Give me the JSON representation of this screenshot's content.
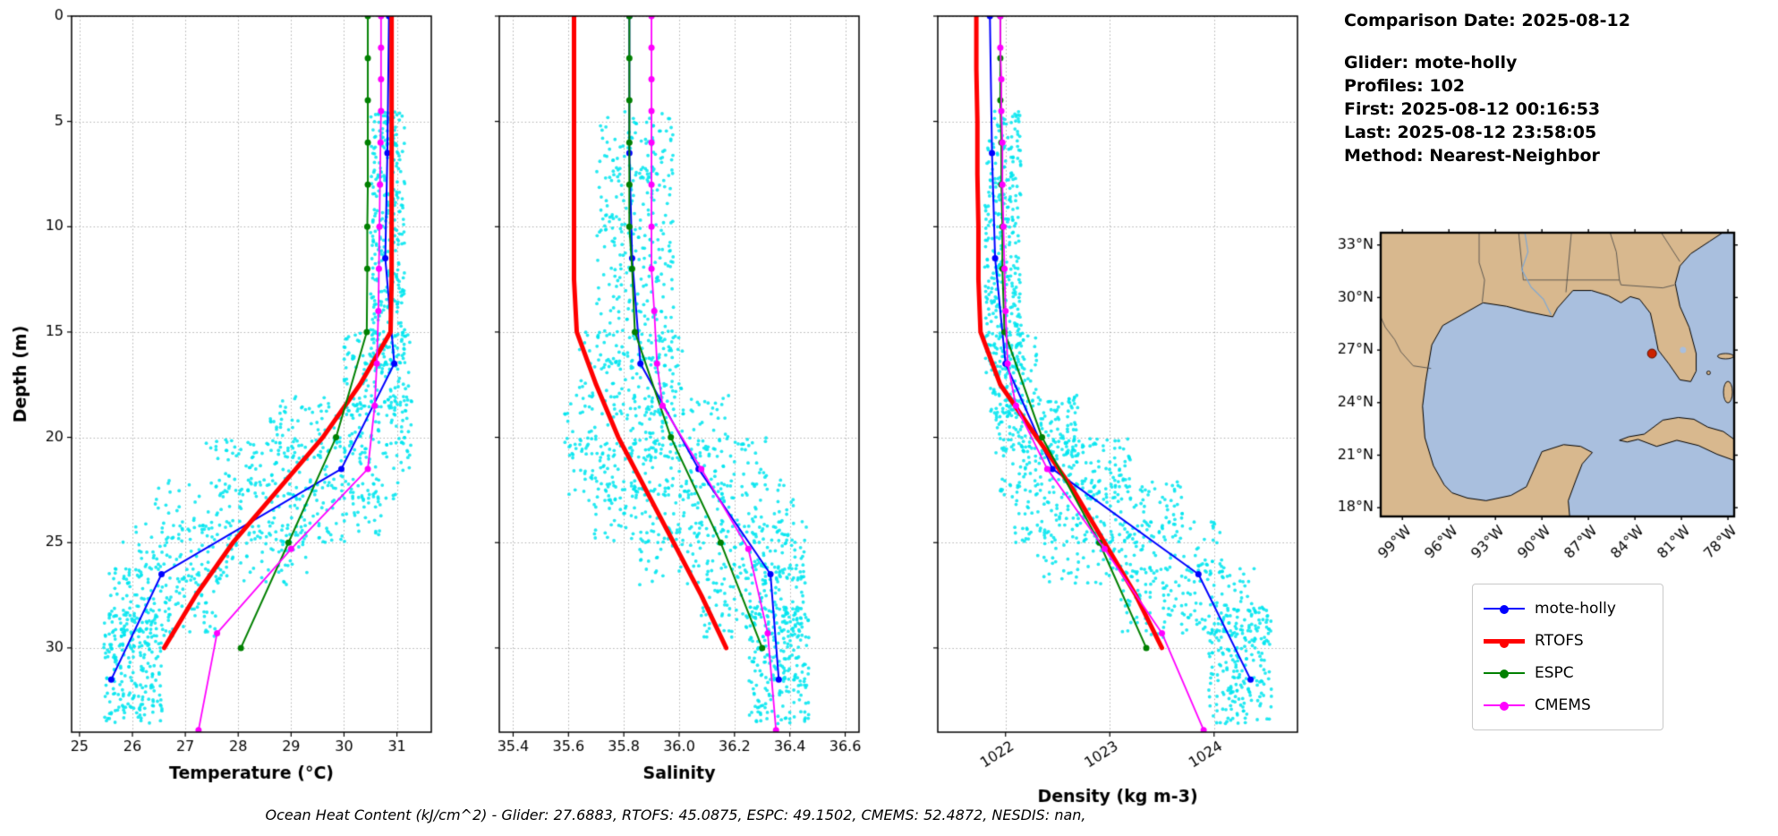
{
  "info_panel": {
    "comparison_date": "Comparison Date: 2025-08-12",
    "glider": "Glider: mote-holly",
    "profiles": "Profiles: 102",
    "first": "First: 2025-08-12 00:16:53",
    "last": "Last: 2025-08-12 23:58:05",
    "method": "Method: Nearest-Neighbor"
  },
  "caption": "Ocean Heat Content (kJ/cm^2) - Glider: 27.6883,  RTOFS: 45.0875,  ESPC: 49.1502,  CMEMS: 52.4872,  NESDIS: nan,",
  "legend": {
    "entries": [
      {
        "label": "mote-holly",
        "color": "#0000ff",
        "lw": 2
      },
      {
        "label": "RTOFS",
        "color": "#ff0000",
        "lw": 5
      },
      {
        "label": "ESPC",
        "color": "#008000",
        "lw": 2
      },
      {
        "label": "CMEMS",
        "color": "#ff00ff",
        "lw": 2
      }
    ]
  },
  "map": {
    "extent": {
      "lon_min": -100.4,
      "lon_max": -77.6,
      "lat_min": 17.5,
      "lat_max": 33.7
    },
    "lat_tick_values": [
      33,
      30,
      27,
      24,
      21,
      18
    ],
    "lat_tick_labels": [
      "33°N",
      "30°N",
      "27°N",
      "24°N",
      "21°N",
      "18°N"
    ],
    "lon_tick_values": [
      -99,
      -96,
      -93,
      -90,
      -87,
      -84,
      -81,
      -78
    ],
    "lon_tick_labels": [
      "99°W",
      "96°W",
      "93°W",
      "90°W",
      "87°W",
      "84°W",
      "81°W",
      "78°W"
    ],
    "colors": {
      "land": "#d8b88e",
      "water": "#a9bfde",
      "coast": "#000000",
      "marker": "#cc2200"
    },
    "glider_location": {
      "lon": -82.9,
      "lat": 26.8
    }
  },
  "chart_data": {
    "type": "line",
    "title": "",
    "ylabel": "Depth (m)",
    "ylim": [
      0,
      34
    ],
    "yticks": [
      0,
      5,
      10,
      15,
      20,
      25,
      30
    ],
    "grid": "dotted",
    "scatter_color": "#00e5ee",
    "panels": [
      {
        "key": "temperature",
        "xlabel": "Temperature (°C)",
        "xlim": [
          24.85,
          31.65
        ],
        "xticks": [
          25,
          26,
          27,
          28,
          29,
          30,
          31
        ],
        "xtick_labels": [
          "25",
          "26",
          "27",
          "28",
          "29",
          "30",
          "31"
        ],
        "rotate_xtick_labels": false,
        "scatter_regions": [
          {
            "d": [
              4.5,
              17
            ],
            "x": [
              30.5,
              31.15
            ],
            "n": 340
          },
          {
            "d": [
              15,
              19
            ],
            "x": [
              30.0,
              31.25
            ],
            "n": 110
          },
          {
            "d": [
              18,
              21
            ],
            "x": [
              28.6,
              31.3
            ],
            "n": 150
          },
          {
            "d": [
              20,
              23
            ],
            "x": [
              27.3,
              31.25
            ],
            "n": 170
          },
          {
            "d": [
              22,
              25
            ],
            "x": [
              26.4,
              30.7
            ],
            "n": 170
          },
          {
            "d": [
              24,
              27
            ],
            "x": [
              25.8,
              29.3
            ],
            "n": 150
          },
          {
            "d": [
              26,
              29.5
            ],
            "x": [
              25.55,
              27.6
            ],
            "n": 150
          },
          {
            "d": [
              28,
              33.6
            ],
            "x": [
              25.45,
              26.6
            ],
            "n": 230
          }
        ]
      },
      {
        "key": "salinity",
        "xlabel": "Salinity",
        "xlim": [
          35.35,
          36.65
        ],
        "xticks": [
          35.4,
          35.6,
          35.8,
          36.0,
          36.2,
          36.4,
          36.6
        ],
        "xtick_labels": [
          "35.4",
          "35.6",
          "35.8",
          "36.0",
          "36.2",
          "36.4",
          "36.6"
        ],
        "rotate_xtick_labels": false,
        "scatter_regions": [
          {
            "d": [
              4.5,
              17
            ],
            "x": [
              35.7,
              35.98
            ],
            "n": 340
          },
          {
            "d": [
              15,
              19
            ],
            "x": [
              35.63,
              36.02
            ],
            "n": 110
          },
          {
            "d": [
              18,
              21
            ],
            "x": [
              35.58,
              36.18
            ],
            "n": 150
          },
          {
            "d": [
              20,
              23
            ],
            "x": [
              35.6,
              36.32
            ],
            "n": 170
          },
          {
            "d": [
              22,
              25
            ],
            "x": [
              35.68,
              36.42
            ],
            "n": 170
          },
          {
            "d": [
              24,
              27
            ],
            "x": [
              35.85,
              36.46
            ],
            "n": 150
          },
          {
            "d": [
              26,
              29.5
            ],
            "x": [
              36.08,
              36.46
            ],
            "n": 150
          },
          {
            "d": [
              28,
              33.6
            ],
            "x": [
              36.25,
              36.47
            ],
            "n": 230
          }
        ]
      },
      {
        "key": "density",
        "xlabel": "Density (kg m-3)",
        "xlim": [
          1021.35,
          1024.8
        ],
        "xticks": [
          1022,
          1023,
          1024
        ],
        "xtick_labels": [
          "1022",
          "1023",
          "1024"
        ],
        "rotate_xtick_labels": true,
        "scatter_regions": [
          {
            "d": [
              4.5,
              17
            ],
            "x": [
              1021.8,
              1022.15
            ],
            "n": 340
          },
          {
            "d": [
              15,
              19
            ],
            "x": [
              1021.85,
              1022.3
            ],
            "n": 110
          },
          {
            "d": [
              18,
              21
            ],
            "x": [
              1021.9,
              1022.7
            ],
            "n": 150
          },
          {
            "d": [
              20,
              23
            ],
            "x": [
              1021.95,
              1023.2
            ],
            "n": 170
          },
          {
            "d": [
              22,
              25
            ],
            "x": [
              1022.05,
              1023.7
            ],
            "n": 170
          },
          {
            "d": [
              24,
              27
            ],
            "x": [
              1022.3,
              1024.1
            ],
            "n": 150
          },
          {
            "d": [
              26,
              29.5
            ],
            "x": [
              1023.1,
              1024.4
            ],
            "n": 150
          },
          {
            "d": [
              28,
              33.6
            ],
            "x": [
              1023.95,
              1024.55
            ],
            "n": 230
          }
        ]
      }
    ],
    "series": [
      {
        "name": "mote-holly",
        "color": "#0000ff",
        "lw": 2,
        "marker": 7,
        "depth": [
          0,
          6.5,
          11.5,
          16.5,
          21.5,
          26.5,
          31.5
        ],
        "temperature": [
          30.85,
          30.82,
          30.78,
          30.95,
          29.95,
          26.55,
          25.6
        ],
        "salinity": [
          35.82,
          35.82,
          35.83,
          35.86,
          36.07,
          36.33,
          36.36
        ],
        "density": [
          1021.85,
          1021.87,
          1021.9,
          1022.0,
          1022.45,
          1023.85,
          1024.35
        ]
      },
      {
        "name": "RTOFS",
        "color": "#ff0000",
        "lw": 5,
        "marker": 0,
        "depth": [
          0,
          2.5,
          5,
          7.5,
          10,
          12.5,
          15,
          17.5,
          20,
          22.5,
          25,
          27.5,
          30
        ],
        "temperature": [
          30.9,
          30.9,
          30.9,
          30.9,
          30.9,
          30.9,
          30.88,
          30.3,
          29.6,
          28.75,
          27.9,
          27.2,
          26.6
        ],
        "salinity": [
          35.62,
          35.62,
          35.62,
          35.62,
          35.62,
          35.62,
          35.63,
          35.7,
          35.78,
          35.88,
          35.98,
          36.08,
          36.17
        ],
        "density": [
          1021.72,
          1021.72,
          1021.73,
          1021.73,
          1021.74,
          1021.74,
          1021.76,
          1021.95,
          1022.3,
          1022.65,
          1022.95,
          1023.25,
          1023.5
        ]
      },
      {
        "name": "ESPC",
        "color": "#008000",
        "lw": 2,
        "marker": 7,
        "depth": [
          0,
          2,
          4,
          6,
          8,
          10,
          12,
          15,
          20,
          25,
          30
        ],
        "temperature": [
          30.45,
          30.45,
          30.45,
          30.45,
          30.45,
          30.44,
          30.44,
          30.43,
          29.85,
          28.95,
          28.05
        ],
        "salinity": [
          35.82,
          35.82,
          35.82,
          35.82,
          35.82,
          35.82,
          35.83,
          35.84,
          35.97,
          36.15,
          36.3
        ],
        "density": [
          1021.95,
          1021.95,
          1021.95,
          1021.96,
          1021.96,
          1021.97,
          1021.97,
          1021.99,
          1022.35,
          1022.9,
          1023.35
        ]
      },
      {
        "name": "CMEMS",
        "color": "#ff00ff",
        "lw": 1.8,
        "marker": 7,
        "depth": [
          0,
          1.5,
          3,
          4.5,
          6,
          8,
          10,
          12,
          14,
          16.5,
          18.5,
          21.5,
          25.3,
          29.3,
          33.9
        ],
        "temperature": [
          30.7,
          30.7,
          30.7,
          30.7,
          30.69,
          30.68,
          30.67,
          30.66,
          30.65,
          30.62,
          30.58,
          30.45,
          29.0,
          27.6,
          27.25
        ],
        "salinity": [
          35.9,
          35.9,
          35.9,
          35.9,
          35.9,
          35.9,
          35.9,
          35.9,
          35.91,
          35.92,
          35.94,
          36.08,
          36.25,
          36.32,
          36.35
        ],
        "density": [
          1021.95,
          1021.95,
          1021.96,
          1021.96,
          1021.97,
          1021.97,
          1021.98,
          1021.99,
          1022.0,
          1022.02,
          1022.1,
          1022.4,
          1022.95,
          1023.5,
          1023.9
        ]
      }
    ]
  }
}
